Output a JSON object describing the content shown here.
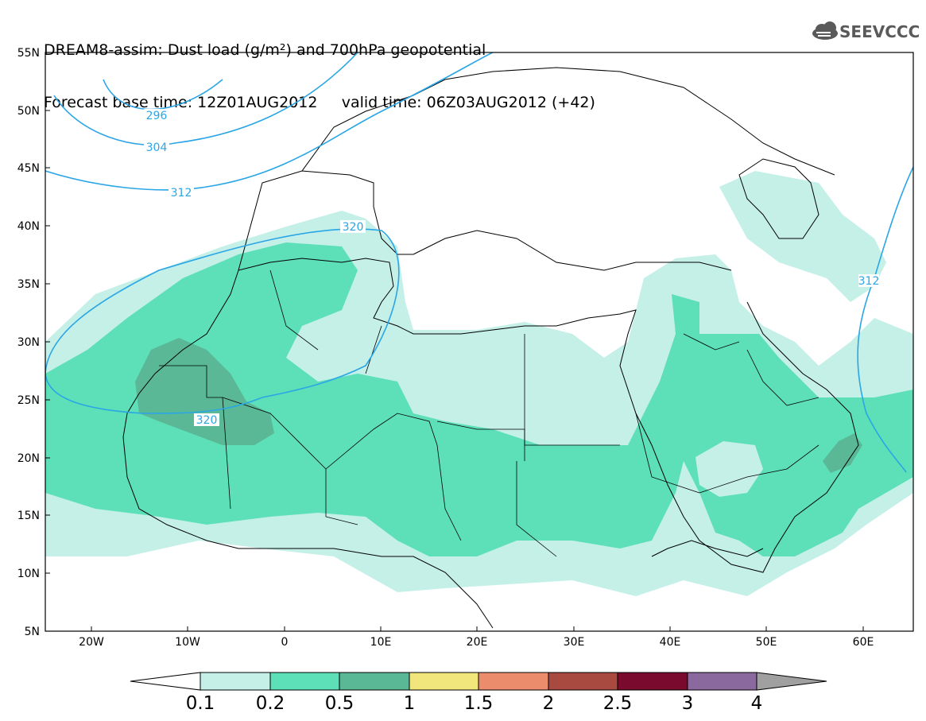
{
  "header": {
    "line1": "DREAM8-assim: Dust load (g/m²) and 700hPa geopotential",
    "base_label": "Forecast base time: 12Z01AUG2012",
    "valid_label": "valid time: 06Z03AUG2012 (+42)"
  },
  "logo": {
    "text": "SEEVCCC",
    "icon": "cloud-logo-icon"
  },
  "axes": {
    "lat_labels": [
      "55N",
      "50N",
      "45N",
      "40N",
      "35N",
      "30N",
      "25N",
      "20N",
      "15N",
      "10N",
      "5N"
    ],
    "lon_labels": [
      "20W",
      "10W",
      "0",
      "10E",
      "20E",
      "30E",
      "40E",
      "50E",
      "60E"
    ]
  },
  "contours": {
    "labels": [
      "296",
      "304",
      "312",
      "320",
      "320",
      "312"
    ]
  },
  "colorbar": {
    "labels": [
      "0.1",
      "0.2",
      "0.5",
      "1",
      "1.5",
      "2",
      "2.5",
      "3",
      "4"
    ],
    "colors": [
      "#c4f0e8",
      "#5ddfb8",
      "#5ab896",
      "#f0e67c",
      "#eb8c6c",
      "#a84a40",
      "#7a0b2e",
      "#8a6a9e",
      "#a0a0a0"
    ]
  }
}
